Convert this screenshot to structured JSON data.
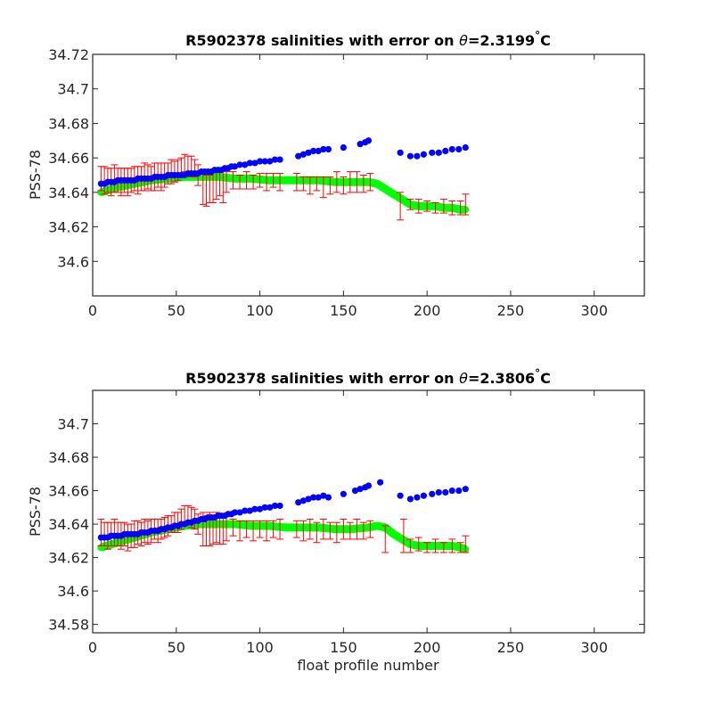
{
  "chart_data": [
    {
      "type": "scatter",
      "title": {
        "prefix": "R5902378 salinities with error on ",
        "theta": "θ",
        "value": "=2.3199",
        "degree": "°",
        "unit": "C"
      },
      "xlabel": "",
      "ylabel": "PSS-78",
      "xlim": [
        0,
        330
      ],
      "ylim": [
        34.58,
        34.72
      ],
      "xticks": [
        "0",
        "50",
        "100",
        "150",
        "200",
        "250",
        "300"
      ],
      "yticks": [
        "34.6",
        "34.62",
        "34.64",
        "34.66",
        "34.68",
        "34.7",
        "34.72"
      ],
      "colors": {
        "measured": "#0000ff",
        "calibrated": "#00ff00",
        "errorbar": "#ff0000"
      },
      "series": [
        {
          "x": [
            5,
            7,
            9,
            11,
            13,
            15,
            17,
            19,
            21,
            23,
            25,
            27,
            29,
            31,
            33,
            35,
            37,
            39,
            41,
            43,
            45,
            47,
            49,
            51,
            53,
            55,
            57,
            59,
            61,
            63,
            65,
            67,
            69,
            71,
            73,
            75,
            77,
            79,
            81,
            83,
            85,
            88,
            91,
            94,
            97,
            100,
            103,
            106,
            109,
            112,
            123,
            126,
            129,
            132,
            135,
            138,
            141,
            150,
            160,
            163,
            165,
            184,
            190,
            194,
            198,
            203,
            207,
            211,
            215,
            219,
            223
          ],
          "y": [
            34.645,
            34.645,
            34.646,
            34.646,
            34.646,
            34.647,
            34.647,
            34.647,
            34.647,
            34.647,
            34.647,
            34.648,
            34.648,
            34.648,
            34.648,
            34.648,
            34.649,
            34.649,
            34.649,
            34.649,
            34.65,
            34.65,
            34.65,
            34.65,
            34.65,
            34.65,
            34.651,
            34.651,
            34.651,
            34.651,
            34.652,
            34.652,
            34.652,
            34.652,
            34.653,
            34.653,
            34.653,
            34.654,
            34.654,
            34.655,
            34.655,
            34.656,
            34.656,
            34.657,
            34.657,
            34.658,
            34.658,
            34.658,
            34.659,
            34.659,
            34.661,
            34.662,
            34.663,
            34.664,
            34.664,
            34.665,
            34.665,
            34.666,
            34.668,
            34.669,
            34.67,
            34.663,
            34.661,
            34.661,
            34.662,
            34.663,
            34.663,
            34.664,
            34.665,
            34.665,
            34.666
          ]
        },
        {
          "x": [
            5,
            15,
            25,
            35,
            45,
            55,
            65,
            75,
            85,
            95,
            105,
            115,
            125,
            135,
            145,
            155,
            165,
            170,
            175,
            180,
            185,
            190,
            195,
            200,
            205,
            210,
            215,
            220,
            223
          ],
          "y": [
            34.64,
            34.643,
            34.645,
            34.647,
            34.648,
            34.649,
            34.649,
            34.649,
            34.648,
            34.648,
            34.647,
            34.647,
            34.647,
            34.647,
            34.646,
            34.646,
            34.646,
            34.645,
            34.642,
            34.639,
            34.636,
            34.633,
            34.632,
            34.632,
            34.632,
            34.631,
            34.631,
            34.63,
            34.63
          ]
        },
        {
          "x": [
            5,
            7,
            9,
            11,
            13,
            15,
            17,
            19,
            21,
            23,
            25,
            27,
            29,
            31,
            33,
            35,
            37,
            39,
            41,
            43,
            45,
            47,
            49,
            51,
            53,
            55,
            57,
            59,
            61,
            63,
            66,
            68,
            70,
            72,
            74,
            76,
            78,
            80,
            84,
            88,
            92,
            96,
            100,
            104,
            108,
            112,
            122,
            126,
            130,
            134,
            138,
            142,
            146,
            150,
            154,
            158,
            162,
            166,
            184,
            190,
            195,
            200,
            205,
            210,
            215,
            220,
            223
          ],
          "y": [
            34.648,
            34.647,
            34.647,
            34.646,
            34.648,
            34.647,
            34.646,
            34.647,
            34.646,
            34.647,
            34.648,
            34.647,
            34.648,
            34.649,
            34.649,
            34.648,
            34.649,
            34.65,
            34.649,
            34.65,
            34.651,
            34.652,
            34.652,
            34.653,
            34.655,
            34.657,
            34.656,
            34.655,
            34.654,
            34.65,
            34.643,
            34.641,
            34.642,
            34.643,
            34.644,
            34.645,
            34.643,
            34.646,
            34.647,
            34.646,
            34.647,
            34.646,
            34.647,
            34.646,
            34.647,
            34.646,
            34.646,
            34.645,
            34.644,
            34.645,
            34.643,
            34.644,
            34.646,
            34.644,
            34.646,
            34.646,
            34.645,
            34.646,
            34.632,
            34.633,
            34.632,
            34.632,
            34.631,
            34.632,
            34.631,
            34.631,
            34.633
          ],
          "err": [
            0.007,
            0.008,
            0.007,
            0.008,
            0.008,
            0.007,
            0.008,
            0.007,
            0.008,
            0.007,
            0.007,
            0.008,
            0.007,
            0.008,
            0.007,
            0.007,
            0.008,
            0.007,
            0.008,
            0.007,
            0.006,
            0.007,
            0.006,
            0.006,
            0.005,
            0.005,
            0.005,
            0.006,
            0.005,
            0.006,
            0.01,
            0.009,
            0.008,
            0.009,
            0.008,
            0.007,
            0.009,
            0.006,
            0.005,
            0.004,
            0.005,
            0.004,
            0.004,
            0.005,
            0.004,
            0.005,
            0.005,
            0.004,
            0.005,
            0.004,
            0.006,
            0.005,
            0.006,
            0.005,
            0.006,
            0.006,
            0.005,
            0.005,
            0.008,
            0.003,
            0.004,
            0.003,
            0.003,
            0.004,
            0.004,
            0.004,
            0.006
          ]
        }
      ]
    },
    {
      "type": "scatter",
      "title": {
        "prefix": "R5902378 salinities with error on ",
        "theta": "θ",
        "value": "=2.3806",
        "degree": "°",
        "unit": "C"
      },
      "xlabel": "float profile number",
      "ylabel": "PSS-78",
      "xlim": [
        0,
        330
      ],
      "ylim": [
        34.575,
        34.72
      ],
      "xticks": [
        "0",
        "50",
        "100",
        "150",
        "200",
        "250",
        "300"
      ],
      "yticks": [
        "34.58",
        "34.6",
        "34.62",
        "34.64",
        "34.66",
        "34.68",
        "34.7"
      ],
      "colors": {
        "measured": "#0000ff",
        "calibrated": "#00ff00",
        "errorbar": "#ff0000"
      },
      "series": [
        {
          "x": [
            5,
            7,
            9,
            11,
            13,
            15,
            17,
            19,
            21,
            23,
            25,
            27,
            29,
            31,
            33,
            35,
            37,
            39,
            41,
            43,
            45,
            47,
            49,
            51,
            53,
            55,
            57,
            59,
            61,
            63,
            65,
            67,
            69,
            71,
            73,
            75,
            77,
            79,
            81,
            83,
            85,
            88,
            91,
            94,
            97,
            100,
            103,
            106,
            109,
            112,
            123,
            126,
            129,
            132,
            135,
            138,
            141,
            150,
            157,
            160,
            163,
            165,
            172,
            184,
            190,
            194,
            198,
            203,
            207,
            211,
            215,
            219,
            223
          ],
          "y": [
            34.632,
            34.632,
            34.632,
            34.633,
            34.633,
            34.633,
            34.633,
            34.634,
            34.634,
            34.634,
            34.634,
            34.634,
            34.635,
            34.635,
            34.635,
            34.636,
            34.636,
            34.636,
            34.637,
            34.637,
            34.638,
            34.638,
            34.639,
            34.639,
            34.64,
            34.64,
            34.641,
            34.641,
            34.642,
            34.642,
            34.643,
            34.643,
            34.644,
            34.644,
            34.644,
            34.645,
            34.645,
            34.645,
            34.646,
            34.646,
            34.647,
            34.647,
            34.648,
            34.648,
            34.649,
            34.649,
            34.65,
            34.65,
            34.651,
            34.651,
            34.653,
            34.654,
            34.655,
            34.656,
            34.656,
            34.657,
            34.656,
            34.658,
            34.66,
            34.661,
            34.662,
            34.663,
            34.665,
            34.657,
            34.655,
            34.656,
            34.657,
            34.658,
            34.659,
            34.659,
            34.66,
            34.66,
            34.661
          ]
        },
        {
          "x": [
            5,
            15,
            25,
            35,
            45,
            55,
            65,
            75,
            85,
            95,
            105,
            115,
            125,
            135,
            145,
            155,
            165,
            170,
            175,
            180,
            185,
            190,
            195,
            200,
            205,
            210,
            215,
            220,
            223
          ],
          "y": [
            34.626,
            34.629,
            34.632,
            34.635,
            34.637,
            34.639,
            34.64,
            34.64,
            34.64,
            34.639,
            34.639,
            34.638,
            34.638,
            34.638,
            34.637,
            34.637,
            34.638,
            34.639,
            34.638,
            34.634,
            34.631,
            34.628,
            34.627,
            34.627,
            34.627,
            34.627,
            34.627,
            34.626,
            34.625
          ]
        },
        {
          "x": [
            5,
            7,
            9,
            11,
            13,
            15,
            17,
            19,
            21,
            23,
            25,
            27,
            29,
            31,
            33,
            35,
            37,
            39,
            41,
            43,
            45,
            47,
            49,
            51,
            53,
            55,
            57,
            59,
            61,
            63,
            66,
            68,
            70,
            72,
            74,
            76,
            78,
            80,
            84,
            88,
            92,
            96,
            100,
            104,
            108,
            112,
            122,
            126,
            130,
            134,
            138,
            142,
            146,
            150,
            154,
            158,
            162,
            166,
            175,
            186,
            190,
            195,
            200,
            205,
            210,
            215,
            220,
            223
          ],
          "y": [
            34.635,
            34.634,
            34.633,
            34.634,
            34.635,
            34.634,
            34.633,
            34.634,
            34.632,
            34.633,
            34.634,
            34.635,
            34.634,
            34.636,
            34.635,
            34.636,
            34.637,
            34.636,
            34.637,
            34.638,
            34.639,
            34.64,
            34.641,
            34.641,
            34.643,
            34.645,
            34.646,
            34.644,
            34.643,
            34.64,
            34.637,
            34.636,
            34.637,
            34.636,
            34.638,
            34.637,
            34.636,
            34.638,
            34.638,
            34.636,
            34.637,
            34.636,
            34.637,
            34.636,
            34.637,
            34.637,
            34.637,
            34.636,
            34.637,
            34.635,
            34.637,
            34.636,
            34.635,
            34.637,
            34.636,
            34.637,
            34.636,
            34.637,
            34.631,
            34.633,
            34.627,
            34.628,
            34.626,
            34.627,
            34.626,
            34.627,
            34.626,
            34.628
          ],
          "err": [
            0.008,
            0.007,
            0.008,
            0.007,
            0.008,
            0.007,
            0.008,
            0.007,
            0.008,
            0.007,
            0.008,
            0.007,
            0.007,
            0.007,
            0.007,
            0.007,
            0.006,
            0.007,
            0.006,
            0.006,
            0.006,
            0.005,
            0.006,
            0.006,
            0.006,
            0.006,
            0.005,
            0.006,
            0.006,
            0.006,
            0.01,
            0.009,
            0.01,
            0.008,
            0.009,
            0.009,
            0.008,
            0.008,
            0.005,
            0.006,
            0.005,
            0.006,
            0.005,
            0.006,
            0.005,
            0.006,
            0.005,
            0.006,
            0.006,
            0.006,
            0.006,
            0.005,
            0.006,
            0.006,
            0.005,
            0.006,
            0.005,
            0.005,
            0.008,
            0.01,
            0.004,
            0.004,
            0.003,
            0.004,
            0.003,
            0.004,
            0.003,
            0.005
          ]
        }
      ]
    }
  ]
}
